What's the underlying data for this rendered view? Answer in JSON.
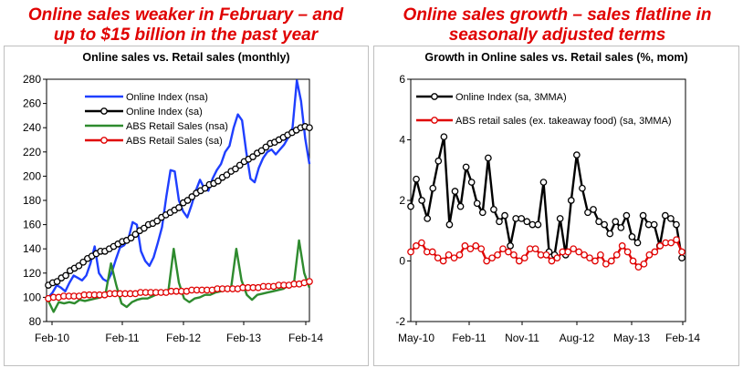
{
  "left_panel": {
    "heading_line1": "Online sales weaker in February – and",
    "heading_line2": "up to $15 billion in the past year"
  },
  "right_panel": {
    "heading_line1": "Online sales growth – sales flatline in",
    "heading_line2": "seasonally adjusted terms"
  },
  "chart_data": [
    {
      "type": "line",
      "title": "Online sales vs. Retail sales (monthly)",
      "xlabel": "",
      "ylabel": "",
      "ylim": [
        80,
        280
      ],
      "yticks": [
        80,
        100,
        120,
        140,
        160,
        180,
        200,
        220,
        240,
        260,
        280
      ],
      "x_tick_labels": [
        "Feb-10",
        "Feb-11",
        "Feb-12",
        "Feb-13",
        "Feb-14"
      ],
      "months": 50,
      "legend": "top-left",
      "series": [
        {
          "name": "Online Index (nsa)",
          "color": "#1f3fff",
          "markers": false,
          "values": [
            100,
            104,
            110,
            108,
            105,
            112,
            118,
            116,
            114,
            118,
            128,
            142,
            120,
            115,
            113,
            120,
            131,
            141,
            143,
            148,
            162,
            160,
            138,
            130,
            126,
            133,
            145,
            158,
            183,
            205,
            204,
            180,
            171,
            166,
            176,
            188,
            197,
            190,
            188,
            198,
            205,
            210,
            220,
            225,
            240,
            251,
            246,
            220,
            198,
            195,
            207,
            215,
            220,
            222,
            218,
            222,
            226,
            232,
            240,
            279,
            262,
            231,
            210
          ]
        },
        {
          "name": "Online Index (sa)",
          "color": "#000000",
          "markers": true,
          "values": [
            110,
            112,
            113,
            116,
            118,
            122,
            124,
            126,
            129,
            132,
            134,
            136,
            138,
            138,
            140,
            142,
            144,
            146,
            147,
            149,
            152,
            155,
            157,
            160,
            161,
            163,
            166,
            168,
            170,
            172,
            174,
            178,
            180,
            183,
            186,
            188,
            190,
            193,
            194,
            196,
            199,
            201,
            204,
            206,
            209,
            212,
            214,
            216,
            219,
            221,
            224,
            227,
            228,
            230,
            232,
            234,
            236,
            238,
            240,
            241,
            240
          ]
        },
        {
          "name": "ABS Retail Sales (nsa)",
          "color": "#2e8b2e",
          "markers": false,
          "values": [
            97,
            88,
            96,
            95,
            96,
            95,
            98,
            97,
            98,
            99,
            100,
            104,
            128,
            110,
            95,
            92,
            96,
            98,
            99,
            99,
            101,
            103,
            104,
            106,
            140,
            112,
            99,
            96,
            99,
            100,
            102,
            102,
            104,
            105,
            107,
            108,
            140,
            114,
            102,
            98,
            102,
            103,
            104,
            105,
            106,
            107,
            110,
            110,
            147,
            120,
            108
          ]
        },
        {
          "name": "ABS Retail Sales (sa)",
          "color": "#e00000",
          "markers": true,
          "values": [
            99,
            100,
            100,
            101,
            101,
            101,
            101,
            102,
            102,
            102,
            102,
            102,
            103,
            103,
            103,
            103,
            103,
            103,
            104,
            104,
            104,
            104,
            104,
            104,
            105,
            105,
            105,
            105,
            106,
            106,
            106,
            106,
            106,
            107,
            107,
            107,
            107,
            107,
            108,
            108,
            108,
            108,
            109,
            109,
            109,
            110,
            110,
            110,
            111,
            111,
            112,
            113
          ]
        }
      ]
    },
    {
      "type": "line",
      "title": "Growth in Online sales vs. Retail sales (%, mom)",
      "xlabel": "",
      "ylabel": "",
      "ylim": [
        -2,
        6
      ],
      "yticks": [
        -2,
        0,
        2,
        4,
        6
      ],
      "x_tick_labels": [
        "May-10",
        "Feb-11",
        "Nov-11",
        "Aug-12",
        "May-13",
        "Feb-14"
      ],
      "legend": "top-left",
      "series": [
        {
          "name": "Online Index (sa, 3MMA)",
          "color": "#000000",
          "markers": true,
          "values": [
            1.8,
            2.7,
            2.0,
            1.4,
            2.4,
            3.3,
            4.1,
            1.2,
            2.3,
            1.8,
            3.1,
            2.6,
            1.9,
            1.6,
            3.4,
            1.7,
            1.3,
            1.5,
            0.5,
            1.4,
            1.4,
            1.3,
            1.2,
            1.2,
            2.6,
            0.3,
            0.2,
            1.4,
            0.2,
            2.0,
            3.5,
            2.4,
            1.6,
            1.7,
            1.3,
            1.2,
            0.9,
            1.3,
            1.1,
            1.5,
            0.8,
            0.6,
            1.5,
            1.2,
            1.2,
            0.5,
            1.5,
            1.4,
            1.2,
            0.1
          ]
        },
        {
          "name": "ABS retail sales (ex. takeaway food) (sa, 3MMA)",
          "color": "#e00000",
          "markers": true,
          "values": [
            0.3,
            0.5,
            0.6,
            0.3,
            0.3,
            0.1,
            0.0,
            0.2,
            0.1,
            0.2,
            0.5,
            0.4,
            0.5,
            0.4,
            0.0,
            0.1,
            0.2,
            0.4,
            0.3,
            0.2,
            0.0,
            0.1,
            0.4,
            0.4,
            0.2,
            0.2,
            0.0,
            0.1,
            0.3,
            0.3,
            0.4,
            0.3,
            0.2,
            0.1,
            0.0,
            0.2,
            -0.1,
            0.0,
            0.2,
            0.5,
            0.3,
            0.0,
            -0.2,
            -0.1,
            0.2,
            0.3,
            0.5,
            0.6,
            0.6,
            0.7,
            0.3
          ]
        }
      ]
    }
  ]
}
